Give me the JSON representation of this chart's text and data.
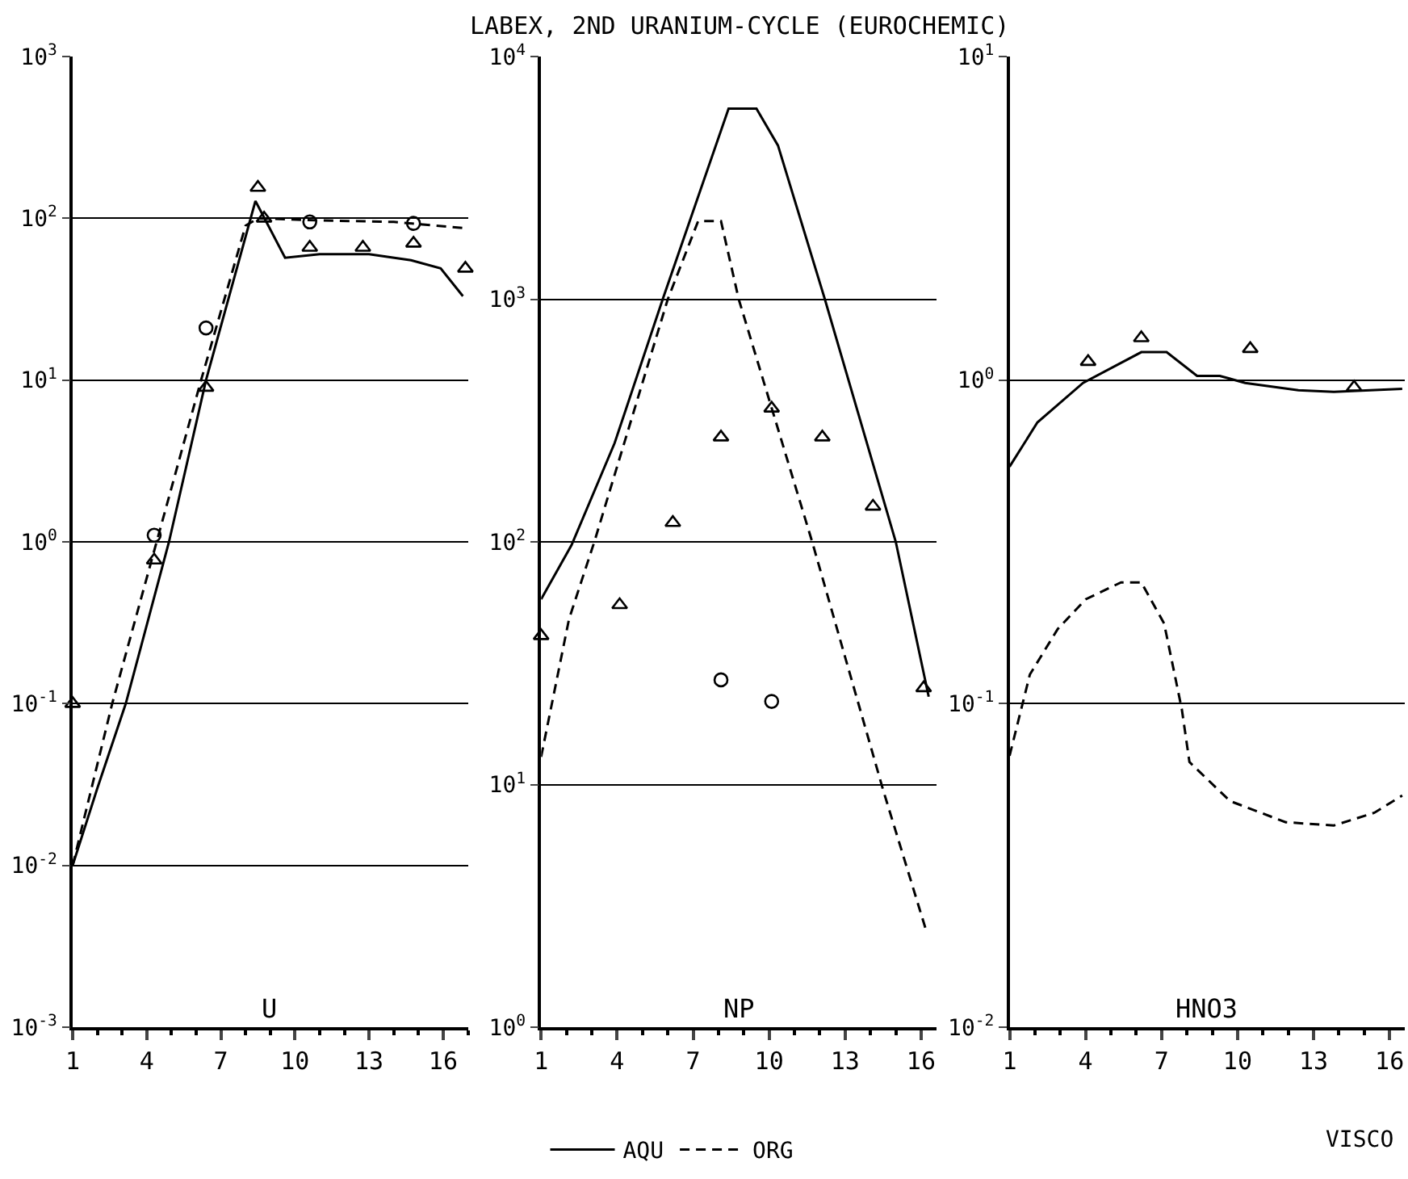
{
  "chart_data": [
    {
      "type": "line",
      "log": true,
      "grid": "y",
      "legend": "bottom",
      "annotations": [
        "U"
      ],
      "xlim": [
        1,
        17
      ],
      "xticks": [
        1,
        4,
        7,
        10,
        13,
        16
      ],
      "ylim": [
        0.001,
        1000
      ],
      "yticks": [
        {
          "value": 0.001,
          "label": "10$^{-3}$"
        },
        {
          "value": 0.01,
          "label": "10$^{-2}$"
        },
        {
          "value": 0.1,
          "label": "10$^{-1}$"
        },
        {
          "value": 1,
          "label": "10$^{0}$"
        },
        {
          "value": 10,
          "label": "10$^{1}$"
        },
        {
          "value": 100,
          "label": "10$^{2}$"
        },
        {
          "value": 1000,
          "label": "10$^{3}$"
        }
      ],
      "series": [
        {
          "name": "AQU",
          "color": "#000000",
          "line_style": "solid",
          "marker": "none",
          "x": [
            1,
            2,
            3.15,
            4.9,
            6.4,
            8.4,
            9.6,
            11,
            13,
            14.7,
            15.9,
            16.8
          ],
          "values": [
            0.01,
            0.03,
            0.1,
            1,
            10,
            128,
            57,
            60,
            60,
            55,
            49,
            33
          ]
        },
        {
          "name": "ORG",
          "color": "#000000",
          "line_style": "dashed",
          "marker": "none",
          "x": [
            1,
            2.6,
            4.4,
            6.2,
            8.0,
            8.5,
            11,
            14,
            16.8
          ],
          "values": [
            0.01,
            0.1,
            1,
            10,
            90,
            100,
            97,
            95,
            87
          ]
        },
        {
          "type": "scatter",
          "color": "#000000",
          "marker": "triangle",
          "x": [
            1,
            4.3,
            6.4,
            8.5,
            8.75,
            10.6,
            12.75,
            14.8,
            16.9
          ],
          "values": [
            0.1,
            0.77,
            9,
            155,
            100,
            66,
            66,
            70,
            49
          ]
        },
        {
          "type": "scatter",
          "color": "#000000",
          "marker": "circle",
          "x": [
            4.3,
            6.4,
            10.6,
            14.8
          ],
          "values": [
            1.1,
            21,
            95,
            93
          ]
        }
      ]
    },
    {
      "type": "line",
      "title": "LABEX, 2ND URANIUM-CYCLE (EUROCHEMIC)",
      "log": true,
      "grid": "y",
      "annotations": [
        "NP"
      ],
      "xlim": [
        1,
        16.6
      ],
      "xticks": [
        1,
        4,
        7,
        10,
        13,
        16
      ],
      "ylim": [
        1,
        10000
      ],
      "yticks": [
        {
          "value": 1,
          "label": "10$^{0}$"
        },
        {
          "value": 10,
          "label": "10$^{1}$"
        },
        {
          "value": 100,
          "label": "10$^{2}$"
        },
        {
          "value": 1000,
          "label": "10$^{3}$"
        },
        {
          "value": 10000,
          "label": "10$^{4}$"
        }
      ],
      "series": [
        {
          "color": "#000000",
          "line_style": "solid",
          "marker": "none",
          "x": [
            1,
            2.2,
            3.9,
            5.8,
            8.4,
            9.5,
            10.35,
            12.2,
            15.0,
            16.3
          ],
          "values": [
            58,
            97,
            255,
            1000,
            6100,
            6100,
            4300,
            1000,
            100,
            23
          ]
        },
        {
          "color": "#000000",
          "line_style": "dashed",
          "marker": "none",
          "x": [
            1,
            2.1,
            3.1,
            6.0,
            7.2,
            8.1,
            8.8,
            11.7,
            14.5,
            16.2
          ],
          "values": [
            13,
            48,
            100,
            1000,
            2100,
            2100,
            1000,
            100,
            9.5,
            2.5
          ]
        },
        {
          "type": "scatter",
          "color": "#000000",
          "marker": "triangle",
          "x": [
            1,
            4.1,
            6.2,
            8.1,
            10.1,
            12.1,
            14.1,
            16.1
          ],
          "values": [
            41,
            55,
            120,
            270,
            355,
            270,
            140,
            25
          ]
        },
        {
          "type": "scatter",
          "color": "#000000",
          "marker": "circle",
          "x": [
            8.1,
            10.1
          ],
          "values": [
            27,
            22
          ]
        }
      ]
    },
    {
      "type": "line",
      "log": true,
      "grid": "y",
      "annotations": [
        "HNO3",
        "VISCO"
      ],
      "xlim": [
        1,
        16.6
      ],
      "xticks": [
        1,
        4,
        7,
        10,
        13,
        16
      ],
      "ylim": [
        0.01,
        10
      ],
      "yticks": [
        {
          "value": 0.01,
          "label": "10$^{-2}$"
        },
        {
          "value": 0.1,
          "label": "10$^{-1}$"
        },
        {
          "value": 1,
          "label": "10$^{0}$"
        },
        {
          "value": 10,
          "label": "10$^{1}$"
        }
      ],
      "series": [
        {
          "color": "#000000",
          "line_style": "solid",
          "marker": "none",
          "x": [
            1,
            2.1,
            3.9,
            6.2,
            7.2,
            8.4,
            9.3,
            10.3,
            12.4,
            13.8,
            16.5
          ],
          "values": [
            0.54,
            0.74,
            0.98,
            1.22,
            1.22,
            1.03,
            1.03,
            0.98,
            0.93,
            0.92,
            0.94
          ]
        },
        {
          "color": "#000000",
          "line_style": "dashed",
          "marker": "none",
          "x": [
            1,
            1.8,
            2.9,
            4.0,
            5.4,
            6.2,
            7.1,
            7.8,
            8.1,
            9.7,
            11.9,
            13.8,
            15.4,
            16.5
          ],
          "values": [
            0.069,
            0.123,
            0.17,
            0.21,
            0.237,
            0.237,
            0.177,
            0.096,
            0.066,
            0.05,
            0.043,
            0.042,
            0.046,
            0.052
          ]
        },
        {
          "type": "scatter",
          "color": "#000000",
          "marker": "triangle",
          "x": [
            4.1,
            6.2,
            10.5,
            14.6
          ],
          "values": [
            1.14,
            1.35,
            1.25,
            0.95
          ]
        }
      ]
    }
  ]
}
